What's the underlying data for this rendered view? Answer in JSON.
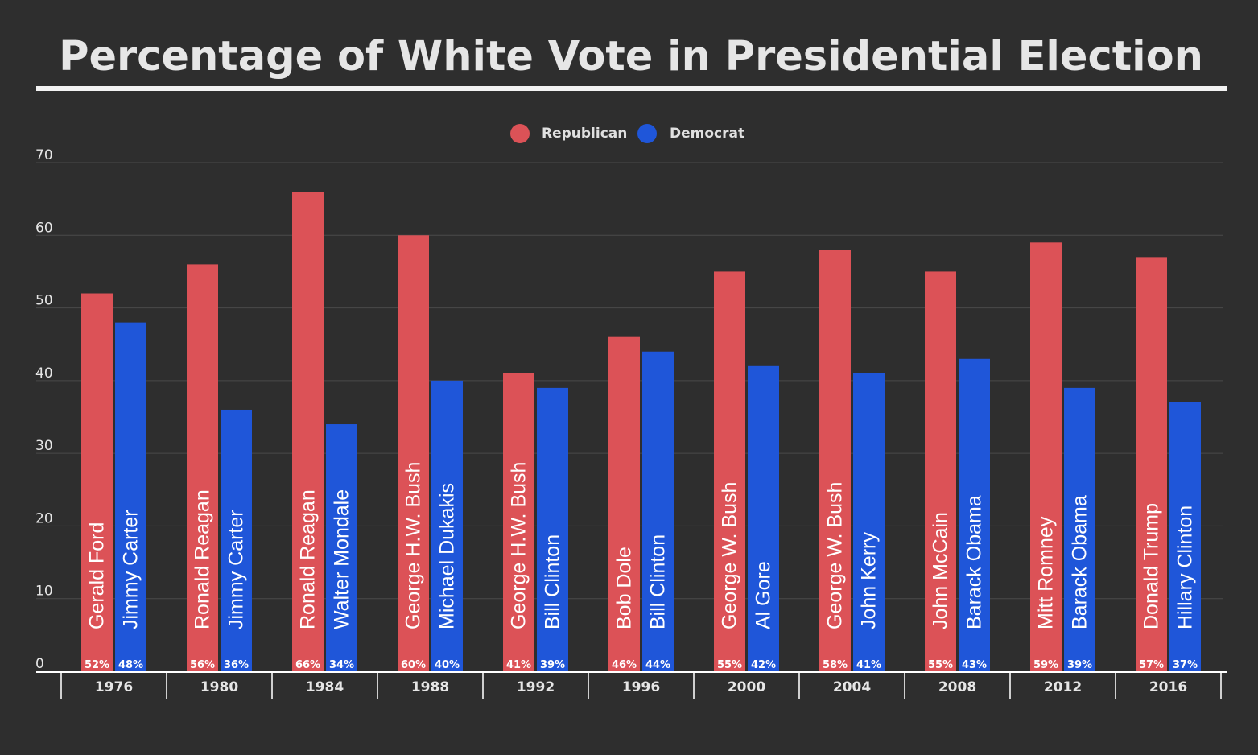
{
  "chart_data": {
    "type": "bar",
    "title": "Percentage of White Vote in Presidential Election",
    "categories": [
      "1976",
      "1980",
      "1984",
      "1988",
      "1992",
      "1996",
      "2000",
      "2004",
      "2008",
      "2012",
      "2016"
    ],
    "series": [
      {
        "name": "Republican",
        "color": "#dc5257",
        "values": [
          52,
          56,
          66,
          60,
          41,
          46,
          55,
          58,
          55,
          59,
          57
        ],
        "candidates": [
          "Gerald Ford",
          "Ronald Reagan",
          "Ronald Reagan",
          "George H.W. Bush",
          "George H.W. Bush",
          "Bob Dole",
          "George W. Bush",
          "George W. Bush",
          "John McCain",
          "Mitt Romney",
          "Donald Trump"
        ],
        "value_labels": [
          "52%",
          "56%",
          "66%",
          "60%",
          "41%",
          "46%",
          "55%",
          "58%",
          "55%",
          "59%",
          "57%"
        ]
      },
      {
        "name": "Democrat",
        "color": "#1f56d9",
        "values": [
          48,
          36,
          34,
          40,
          39,
          44,
          42,
          41,
          43,
          39,
          37
        ],
        "candidates": [
          "Jimmy Carter",
          "Jimmy Carter",
          "Walter Mondale",
          "Michael Dukakis",
          "Bill Clinton",
          "Bill Clinton",
          "Al Gore",
          "John Kerry",
          "Barack Obama",
          "Barack Obama",
          "Hillary Clinton"
        ],
        "value_labels": [
          "48%",
          "36%",
          "34%",
          "40%",
          "39%",
          "44%",
          "42%",
          "41%",
          "43%",
          "39%",
          "37%"
        ]
      }
    ],
    "ylim": [
      0,
      70
    ],
    "yticks": [
      "0",
      "10",
      "20",
      "30",
      "40",
      "50",
      "60",
      "70"
    ],
    "grid": true,
    "legend": "top-center"
  }
}
